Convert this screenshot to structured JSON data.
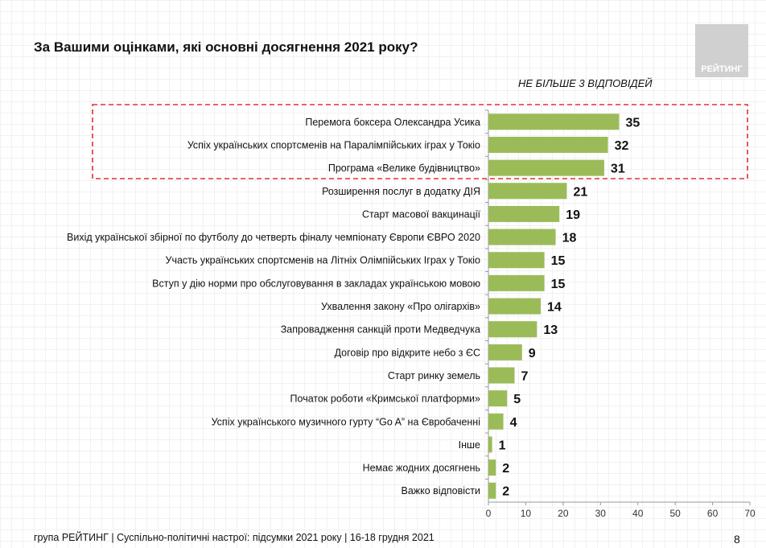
{
  "header": {
    "title": "За Вашими оцінками, які основні досягнення 2021 року?",
    "logo": "РЕЙТИНГ",
    "note": "НЕ БІЛЬШЕ 3 ВІДПОВІДЕЙ"
  },
  "footer": {
    "text": "група РЕЙТИНГ | Суспільно-політичні настрої: підсумки 2021 року | 16-18 грудня 2021",
    "page": "8"
  },
  "chart_data": {
    "type": "bar",
    "orientation": "horizontal",
    "categories": [
      "Перемога боксера Олександра Усика",
      "Успіх українських спортсменів на Паралімпійських іграх у Токіо",
      "Програма «Велике будівництво»",
      "Розширення послуг в додатку ДІЯ",
      "Старт масової вакцинації",
      "Вихід української збірної по футболу до четверть фіналу чемпіонату Європи ЄВРО 2020",
      "Участь українських спортсменів на Літніх Олімпійських Іграх у Токіо",
      "Вступ у дію норми про обслуговування в закладах українською мовою",
      "Ухвалення закону «Про олігархів»",
      "Запровадження санкцій проти Медведчука",
      "Договір про відкрите небо з ЄС",
      "Старт ринку земель",
      "Початок роботи «Кримської платформи»",
      "Успіх українського музичного гурту “Go A” на Євробаченні",
      "Інше",
      "Немає жодних досягнень",
      "Важко відповісти"
    ],
    "values": [
      35,
      32,
      31,
      21,
      19,
      18,
      15,
      15,
      14,
      13,
      9,
      7,
      5,
      4,
      1,
      2,
      2
    ],
    "xlim": [
      0,
      70
    ],
    "xticks": [
      "0",
      "10",
      "20",
      "30",
      "40",
      "50",
      "60",
      "70"
    ],
    "highlighted_top": 3,
    "colors": {
      "bar": "#9bbb59",
      "highlight_border": "#e03030"
    }
  }
}
